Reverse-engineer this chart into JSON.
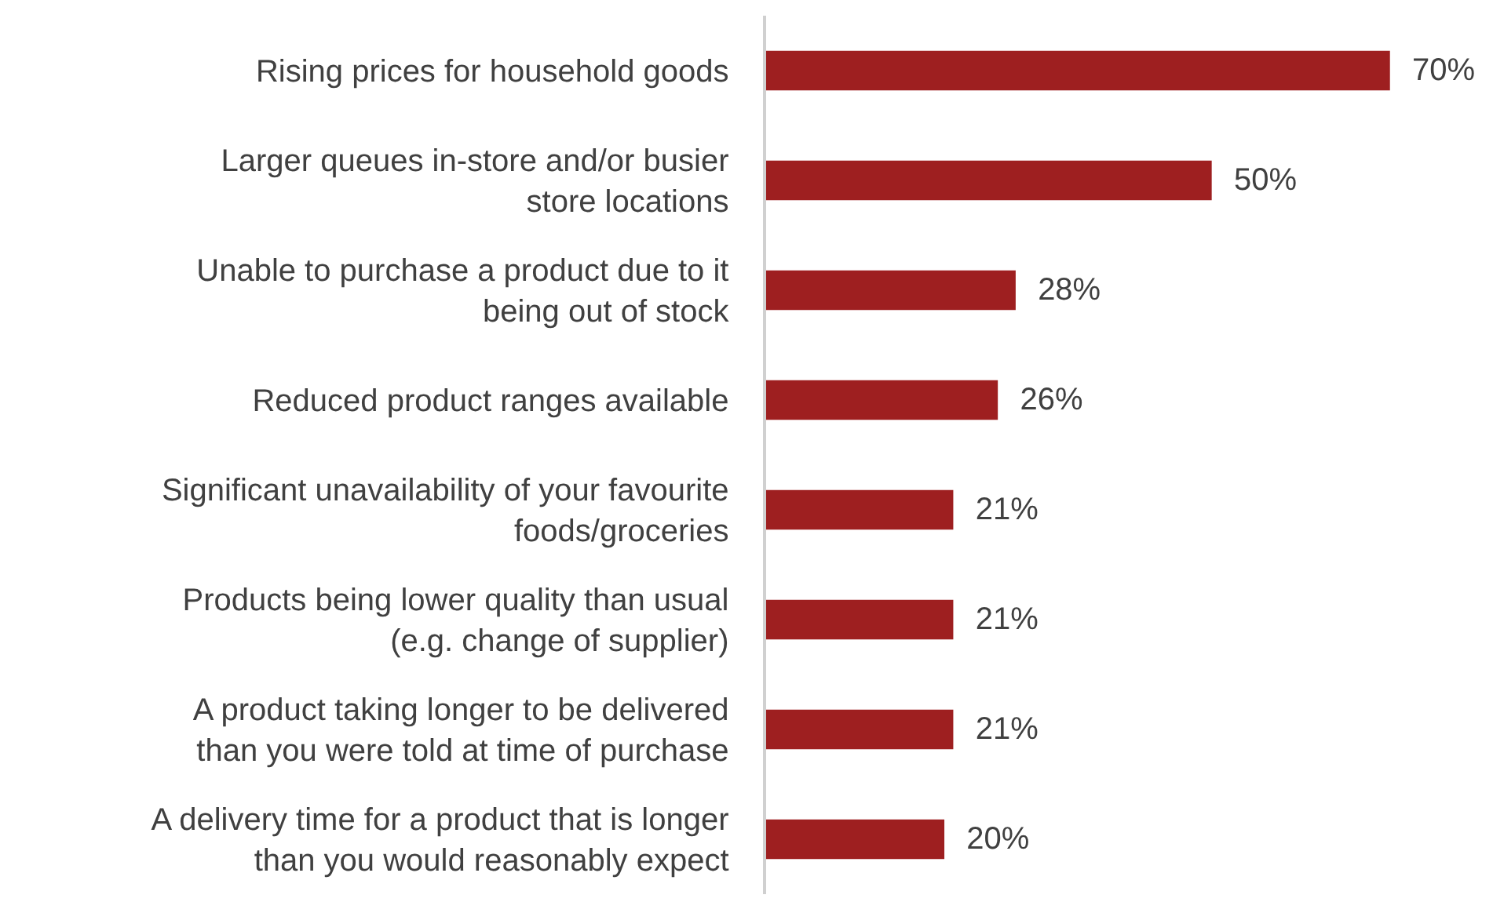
{
  "chart_data": {
    "type": "bar",
    "orientation": "horizontal",
    "grid": false,
    "legend": false,
    "value_labels": [
      "70%",
      "50%",
      "28%",
      "26%",
      "21%",
      "21%",
      "21%",
      "20%"
    ],
    "categories": [
      "Rising prices for household goods",
      "Larger queues in-store and/or busier\nstore locations",
      "Unable to purchase a product due to it\nbeing out of stock",
      "Reduced product ranges available",
      "Significant unavailability of your favourite\nfoods/groceries",
      "Products being lower quality than usual\n(e.g. change of supplier)",
      "A product taking longer to be delivered\nthan you were told at time of purchase",
      "A delivery time for a product that is longer\nthan you would reasonably expect"
    ],
    "values": [
      70,
      50,
      28,
      26,
      21,
      21,
      21,
      20
    ],
    "color": "#9e1f20"
  }
}
